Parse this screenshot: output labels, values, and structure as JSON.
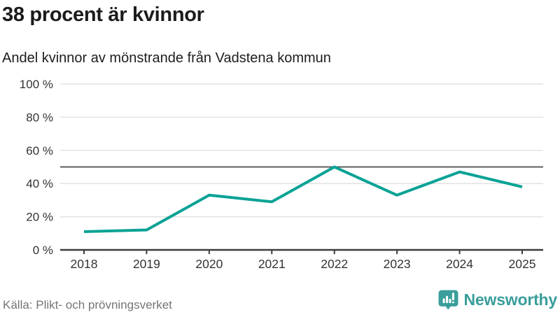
{
  "chart_data": {
    "type": "line",
    "title": "38 procent är kvinnor",
    "subtitle": "Andel kvinnor av mönstrande från Vadstena kommun",
    "x": [
      2018,
      2019,
      2020,
      2021,
      2022,
      2023,
      2024,
      2025
    ],
    "series": [
      {
        "name": "Andel kvinnor av mönstrande",
        "values": [
          11,
          12,
          33,
          29,
          50,
          33,
          47,
          38
        ]
      }
    ],
    "xlabel": "",
    "ylabel": "",
    "ylim": [
      0,
      100
    ],
    "ytick_step": 20,
    "ytick_suffix": " %",
    "reference_line": 50,
    "grid": true,
    "legend": "none",
    "line_color": "#09a295"
  },
  "colors": {
    "line": "#09a295",
    "grid": "#e2e2e2",
    "reference": "#5e5e60",
    "axis": "#3d3d3d",
    "tick_label": "#333333",
    "title": "#1b1b1b",
    "source": "#757575",
    "logo": "#3a9e9b"
  },
  "footer": {
    "source": "Källa: Plikt- och prövningsverket",
    "logo": {
      "text": "Newsworthy",
      "icon": "newsworthy-bubble-chart-icon"
    }
  }
}
